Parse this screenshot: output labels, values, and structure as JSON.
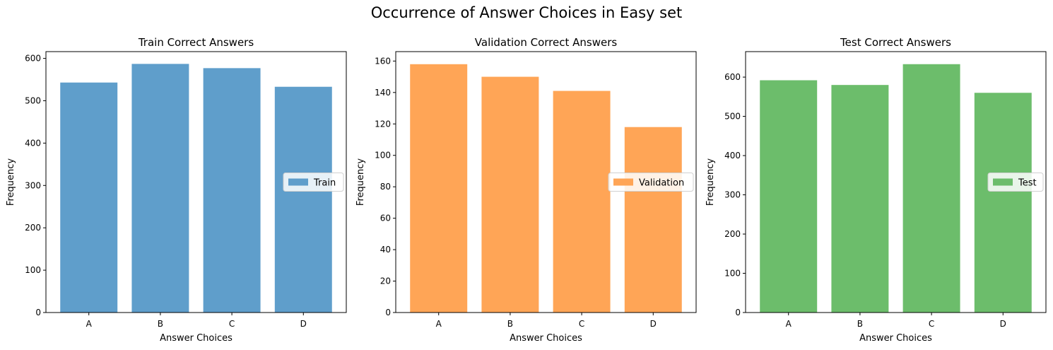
{
  "figure": {
    "title": "Occurrence of Answer Choices in Easy set"
  },
  "chart_data": [
    {
      "type": "bar",
      "title": "Train Correct Answers",
      "xlabel": "Answer Choices",
      "ylabel": "Frequency",
      "categories": [
        "A",
        "B",
        "C",
        "D"
      ],
      "series": [
        {
          "name": "Train",
          "values": [
            543,
            587,
            577,
            533
          ],
          "color": "#5f9ecb"
        }
      ],
      "ylim": [
        0,
        616
      ],
      "yticks": [
        0,
        100,
        200,
        300,
        400,
        500,
        600
      ],
      "grid": false,
      "legend": "center-right"
    },
    {
      "type": "bar",
      "title": "Validation Correct Answers",
      "xlabel": "Answer Choices",
      "ylabel": "Frequency",
      "categories": [
        "A",
        "B",
        "C",
        "D"
      ],
      "series": [
        {
          "name": "Validation",
          "values": [
            158,
            150,
            141,
            118
          ],
          "color": "#ffa556"
        }
      ],
      "ylim": [
        0,
        166
      ],
      "yticks": [
        0,
        20,
        40,
        60,
        80,
        100,
        120,
        140,
        160
      ],
      "grid": false,
      "legend": "center-right"
    },
    {
      "type": "bar",
      "title": "Test Correct Answers",
      "xlabel": "Answer Choices",
      "ylabel": "Frequency",
      "categories": [
        "A",
        "B",
        "C",
        "D"
      ],
      "series": [
        {
          "name": "Test",
          "values": [
            592,
            580,
            633,
            560
          ],
          "color": "#6cbd6b"
        }
      ],
      "ylim": [
        0,
        665
      ],
      "yticks": [
        0,
        100,
        200,
        300,
        400,
        500,
        600
      ],
      "grid": false,
      "legend": "center-right"
    }
  ]
}
